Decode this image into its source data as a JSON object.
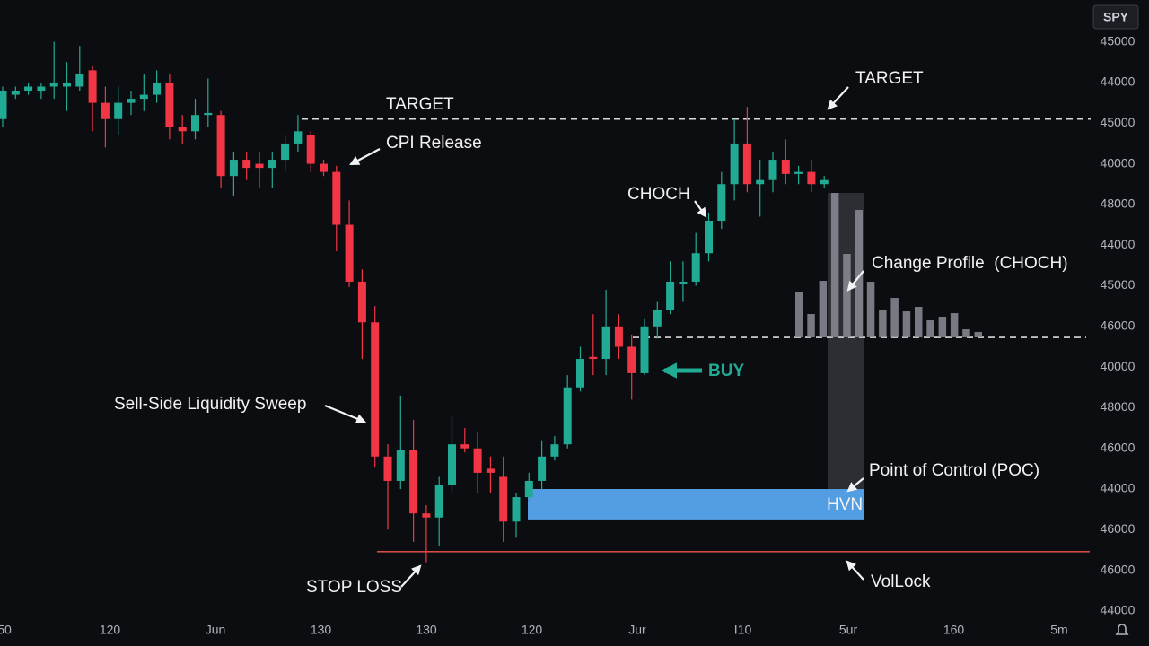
{
  "symbol": "SPY",
  "chart_data": {
    "type": "candlestick",
    "up_color": "#22ab94",
    "down_color": "#f23645",
    "open": [
      12.1,
      12.7,
      12.8,
      12.8,
      12.9,
      12.9,
      12.9,
      13.3,
      12.5,
      12.1,
      12.5,
      12.6,
      12.7,
      13.0,
      11.9,
      11.8,
      12.2,
      12.2,
      10.7,
      11.1,
      11.0,
      10.9,
      11.1,
      11.5,
      11.7,
      11.0,
      10.8,
      9.5,
      8.1,
      7.1,
      3.8,
      3.2,
      3.95,
      2.4,
      2.3,
      3.1,
      4.1,
      4.0,
      3.5,
      3.3,
      2.2,
      2.8,
      3.2,
      3.8,
      4.1,
      5.5,
      6.25,
      6.2,
      7.0,
      6.5,
      5.85,
      7.0,
      7.4,
      8.05,
      8.1,
      8.8,
      9.6,
      10.5,
      11.5,
      10.5,
      10.6,
      11.1,
      10.75,
      10.8,
      10.5
    ],
    "high": [
      12.9,
      12.9,
      13.0,
      13.0,
      14.0,
      13.5,
      13.9,
      13.4,
      12.9,
      12.9,
      12.8,
      13.2,
      13.3,
      13.2,
      12.2,
      12.6,
      13.1,
      12.3,
      11.3,
      11.3,
      11.3,
      11.3,
      11.7,
      12.2,
      11.8,
      11.1,
      10.95,
      10.1,
      8.4,
      7.5,
      4.1,
      5.3,
      4.7,
      2.6,
      3.3,
      4.8,
      4.5,
      4.4,
      3.8,
      3.8,
      2.9,
      3.4,
      4.2,
      4.3,
      5.8,
      6.5,
      7.3,
      7.9,
      7.3,
      6.8,
      7.2,
      7.6,
      8.6,
      8.6,
      9.3,
      9.8,
      10.8,
      12.1,
      12.4,
      11.1,
      11.3,
      11.6,
      10.95,
      11.1,
      10.7
    ],
    "low": [
      11.9,
      12.6,
      12.7,
      12.6,
      12.6,
      12.3,
      12.8,
      11.8,
      11.4,
      11.7,
      12.2,
      12.3,
      12.5,
      11.6,
      11.5,
      11.6,
      11.9,
      10.4,
      10.2,
      10.6,
      10.4,
      10.4,
      10.8,
      11.3,
      10.8,
      10.7,
      8.85,
      7.97,
      6.2,
      3.55,
      2.0,
      3.0,
      1.7,
      1.2,
      1.6,
      2.9,
      3.9,
      2.9,
      2.9,
      1.7,
      1.8,
      2.7,
      3.0,
      3.7,
      4.0,
      5.4,
      5.8,
      5.8,
      6.2,
      5.2,
      5.8,
      6.7,
      7.3,
      7.6,
      8.0,
      8.6,
      9.4,
      10.1,
      10.3,
      9.7,
      10.3,
      10.5,
      10.5,
      10.3,
      10.4
    ],
    "close": [
      12.8,
      12.8,
      12.9,
      12.9,
      13.0,
      13.0,
      13.2,
      12.5,
      12.1,
      12.5,
      12.6,
      12.7,
      13.0,
      11.9,
      11.8,
      12.2,
      12.25,
      10.7,
      11.1,
      10.9,
      10.9,
      11.1,
      11.5,
      11.8,
      11.0,
      10.8,
      9.5,
      8.1,
      7.1,
      3.8,
      3.2,
      3.95,
      2.4,
      2.3,
      3.1,
      4.1,
      4.0,
      3.4,
      3.4,
      2.2,
      2.8,
      3.2,
      3.8,
      4.1,
      5.5,
      6.2,
      6.2,
      7.0,
      6.5,
      5.85,
      7.0,
      7.4,
      8.1,
      8.1,
      8.8,
      9.6,
      10.5,
      11.5,
      10.5,
      10.6,
      11.1,
      10.75,
      10.8,
      10.5,
      10.6
    ],
    "ylim": [
      -0.2,
      15.03
    ],
    "yticks": [
      {
        "value": 14,
        "label": "45000"
      },
      {
        "value": 13,
        "label": "44000"
      },
      {
        "value": 12,
        "label": "45000"
      },
      {
        "value": 11,
        "label": "40000"
      },
      {
        "value": 10,
        "label": "48000"
      },
      {
        "value": 9,
        "label": "44000"
      },
      {
        "value": 8,
        "label": "45000"
      },
      {
        "value": 7,
        "label": "46000"
      },
      {
        "value": 6,
        "label": "40000"
      },
      {
        "value": 5,
        "label": "48000"
      },
      {
        "value": 4,
        "label": "46000"
      },
      {
        "value": 3,
        "label": "44000"
      },
      {
        "value": 2,
        "label": "46000"
      },
      {
        "value": 1,
        "label": "46000"
      },
      {
        "value": 0,
        "label": "44000"
      }
    ],
    "x_labels": [
      "50",
      "120",
      "Jun",
      "130",
      "130",
      "120",
      "Jur",
      "I10",
      "5ur",
      "160",
      "5m"
    ],
    "levels": [
      {
        "value": 12.1,
        "color": "#d9d9d9",
        "style": "dashed"
      },
      {
        "value": 6.73,
        "color": "#d9d9d9",
        "style": "dashed"
      },
      {
        "value": 1.46,
        "color": "#f0554a",
        "style": "solid"
      }
    ],
    "zone": {
      "top": 3.0,
      "bottom": 2.23,
      "color": "#5aa9f5"
    },
    "volume_profile": {
      "color": "#8b8d98",
      "values": [
        50,
        26,
        63,
        161,
        93,
        142,
        62,
        31,
        44,
        29,
        34,
        19,
        23,
        27,
        9,
        6
      ]
    },
    "annotations": [
      "TARGET",
      "TARGET",
      "CPI Release",
      "CHOCH",
      "Change Profile  (CHOCH)",
      "BUY",
      "Sell-Side Liquidity Sweep",
      "Point of Control (POC)",
      "HVN",
      "STOP LOSS",
      "VolLock"
    ]
  }
}
